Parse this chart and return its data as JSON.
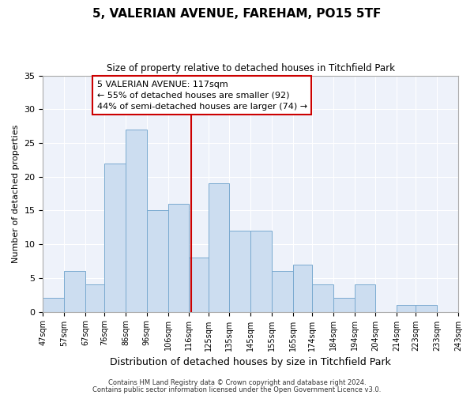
{
  "title": "5, VALERIAN AVENUE, FAREHAM, PO15 5TF",
  "subtitle": "Size of property relative to detached houses in Titchfield Park",
  "xlabel": "Distribution of detached houses by size in Titchfield Park",
  "ylabel": "Number of detached properties",
  "bar_color": "#ccddf0",
  "bar_edge_color": "#7aaad0",
  "background_color": "#ffffff",
  "plot_bg_color": "#eef2fa",
  "grid_color": "#ffffff",
  "annotation_text_line1": "5 VALERIAN AVENUE: 117sqm",
  "annotation_text_line2": "← 55% of detached houses are smaller (92)",
  "annotation_text_line3": "44% of semi-detached houses are larger (74) →",
  "annotation_box_color": "#ffffff",
  "annotation_box_edge_color": "#cc0000",
  "vline_x": 117,
  "vline_color": "#cc0000",
  "bin_edges": [
    47,
    57,
    67,
    76,
    86,
    96,
    106,
    116,
    125,
    135,
    145,
    155,
    165,
    174,
    184,
    194,
    204,
    214,
    223,
    233,
    243
  ],
  "bin_counts": [
    2,
    6,
    4,
    22,
    27,
    15,
    16,
    8,
    19,
    12,
    12,
    6,
    7,
    4,
    2,
    4,
    0,
    1,
    1,
    0
  ],
  "tick_labels": [
    "47sqm",
    "57sqm",
    "67sqm",
    "76sqm",
    "86sqm",
    "96sqm",
    "106sqm",
    "116sqm",
    "125sqm",
    "135sqm",
    "145sqm",
    "155sqm",
    "165sqm",
    "174sqm",
    "184sqm",
    "194sqm",
    "204sqm",
    "214sqm",
    "223sqm",
    "233sqm",
    "243sqm"
  ],
  "ylim": [
    0,
    35
  ],
  "yticks": [
    0,
    5,
    10,
    15,
    20,
    25,
    30,
    35
  ],
  "footer1": "Contains HM Land Registry data © Crown copyright and database right 2024.",
  "footer2": "Contains public sector information licensed under the Open Government Licence v3.0."
}
